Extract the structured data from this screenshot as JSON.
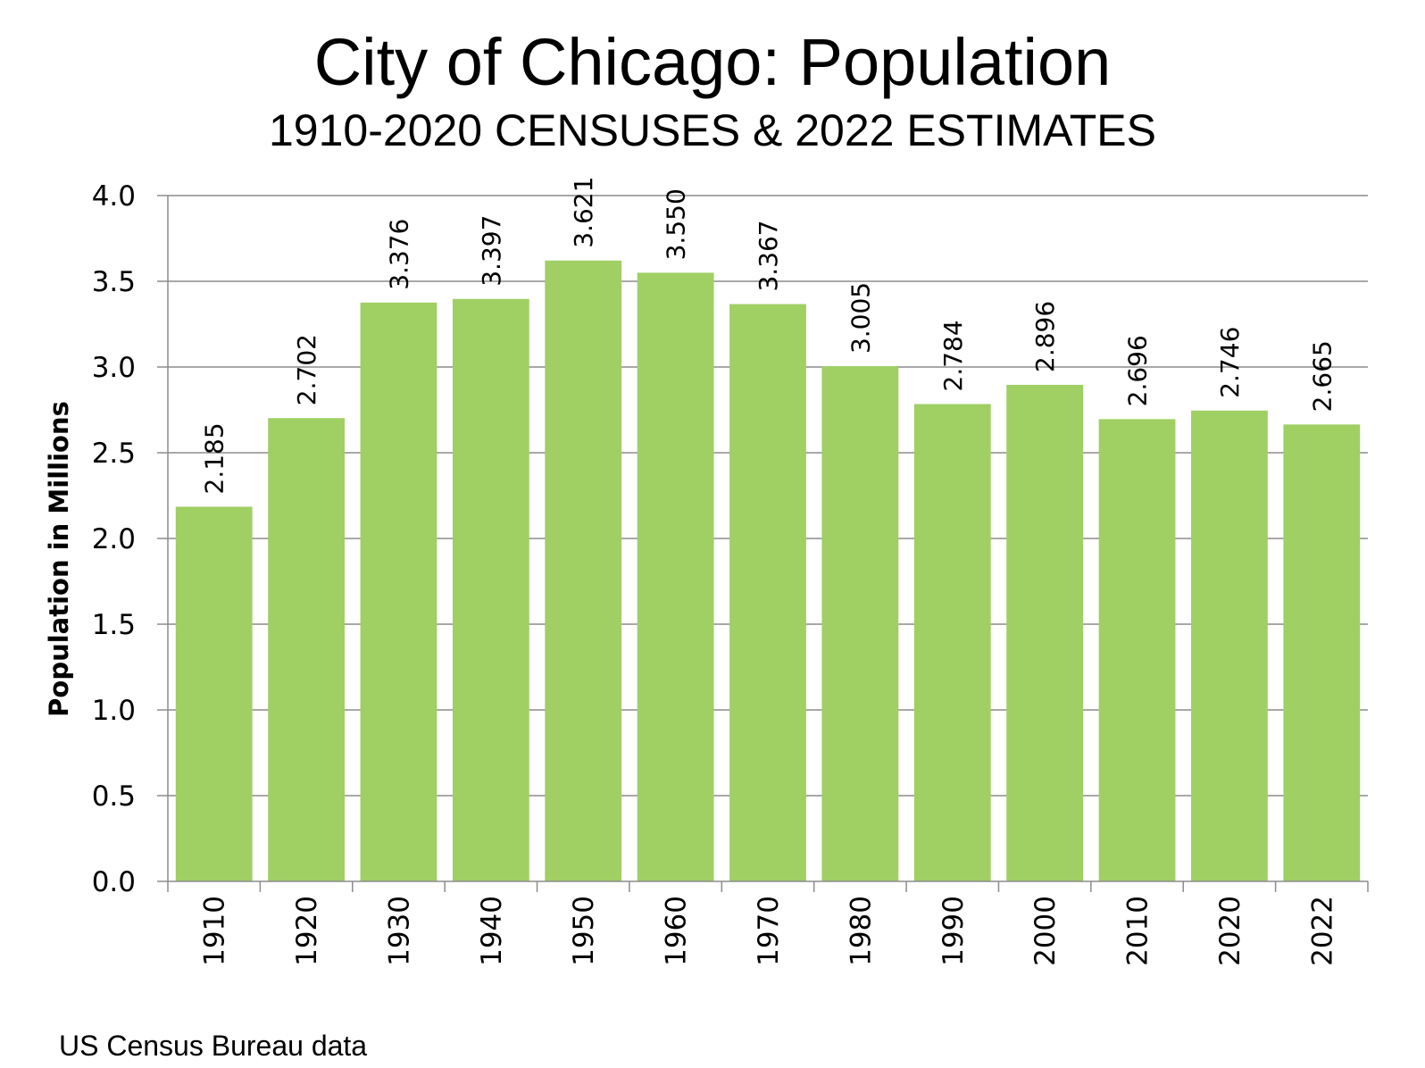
{
  "chart_data": {
    "type": "bar",
    "title": "City of Chicago: Population",
    "subtitle": "1910-2020 CENSUSES & 2022 ESTIMATES",
    "xlabel": "",
    "ylabel": "Population in Millions",
    "categories": [
      "1910",
      "1920",
      "1930",
      "1940",
      "1950",
      "1960",
      "1970",
      "1980",
      "1990",
      "2000",
      "2010",
      "2020",
      "2022"
    ],
    "values": [
      2.185,
      2.702,
      3.376,
      3.397,
      3.621,
      3.55,
      3.367,
      3.005,
      2.784,
      2.896,
      2.696,
      2.746,
      2.665
    ],
    "data_labels": [
      "2.185",
      "2.702",
      "3.376",
      "3.397",
      "3.621",
      "3.550",
      "3.367",
      "3.005",
      "2.784",
      "2.896",
      "2.696",
      "2.746",
      "2.665"
    ],
    "ylim": [
      0,
      4.0
    ],
    "yticks": [
      "0.0",
      "0.5",
      "1.0",
      "1.5",
      "2.0",
      "2.5",
      "3.0",
      "3.5",
      "4.0"
    ],
    "grid": true,
    "legend": "none",
    "bar_color": "#a0cf64",
    "grid_color": "#8c8c8c",
    "axis_color": "#8c8c8c"
  },
  "source": "US Census Bureau data"
}
